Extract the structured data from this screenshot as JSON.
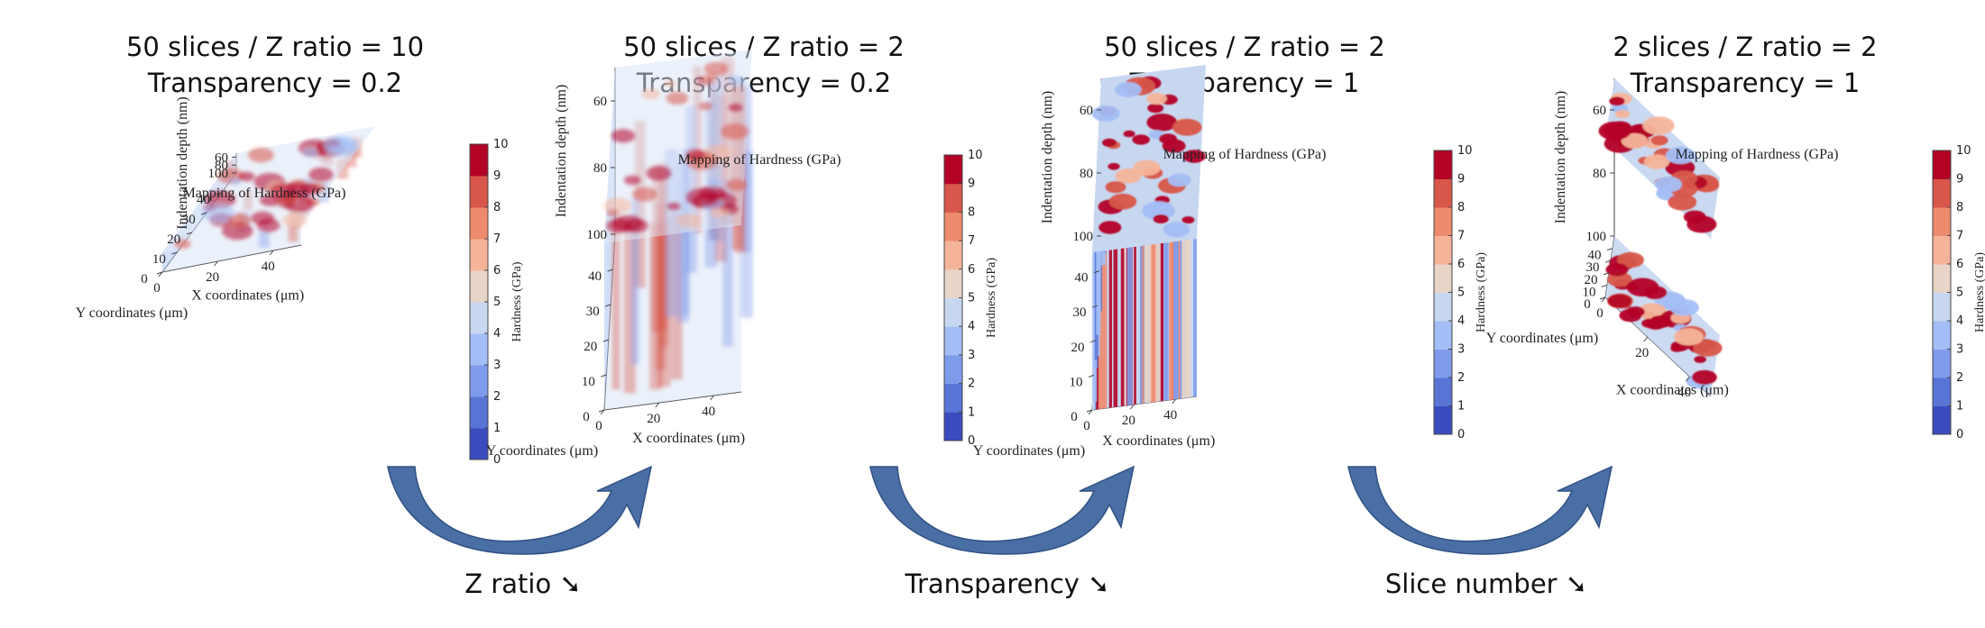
{
  "colormap": [
    "#3b4cc0",
    "#5875d6",
    "#7f9cec",
    "#a3bef6",
    "#c7d7f0",
    "#e9d5c8",
    "#f5b49a",
    "#ee8a6d",
    "#d8574a",
    "#b40426"
  ],
  "arrow_color": "#4a6fa5",
  "chart_data": [
    {
      "type": "heatmap",
      "heading": [
        "50 slices / Z ratio  = 10",
        "Transparency = 0.2"
      ],
      "plot_title": "Mapping of Hardness (GPa)",
      "xlabel": "X coordinates (μm)",
      "ylabel": "Y coordinates (μm)",
      "zlabel": "Indentation depth (nm)",
      "colorbar_label": "Hardness (GPa)",
      "x_ticks": [
        0,
        20,
        40
      ],
      "y_ticks": [
        0,
        10,
        20,
        30,
        40
      ],
      "z_ticks": [
        60,
        80,
        100
      ],
      "clim": [
        0,
        10
      ],
      "colorbar_ticks": [
        0,
        1,
        2,
        3,
        4,
        5,
        6,
        7,
        8,
        9,
        10
      ],
      "slices": 50,
      "z_ratio": 10,
      "transparency": 0.2
    },
    {
      "type": "heatmap",
      "heading": [
        "50 slices / Z ratio  = 2",
        "Transparency = 0.2"
      ],
      "plot_title": "Mapping of Hardness (GPa)",
      "xlabel": "X coordinates (μm)",
      "ylabel": "Y coordinates (μm)",
      "zlabel": "Indentation depth (nm)",
      "colorbar_label": "Hardness (GPa)",
      "x_ticks": [
        0,
        20,
        40
      ],
      "y_ticks": [
        0,
        10,
        20,
        30,
        40
      ],
      "z_ticks": [
        60,
        80,
        100
      ],
      "clim": [
        0,
        10
      ],
      "colorbar_ticks": [
        0,
        1,
        2,
        3,
        4,
        5,
        6,
        7,
        8,
        9,
        10
      ],
      "slices": 50,
      "z_ratio": 2,
      "transparency": 0.2
    },
    {
      "type": "heatmap",
      "heading": [
        "50 slices / Z ratio  = 2",
        "Transparency = 1"
      ],
      "plot_title": "Mapping of Hardness (GPa)",
      "xlabel": "X coordinates (μm)",
      "ylabel": "Y coordinates (μm)",
      "zlabel": "Indentation depth (nm)",
      "colorbar_label": "Hardness (GPa)",
      "x_ticks": [
        0,
        20,
        40
      ],
      "y_ticks": [
        0,
        10,
        20,
        30,
        40
      ],
      "z_ticks": [
        60,
        80,
        100
      ],
      "clim": [
        0,
        10
      ],
      "colorbar_ticks": [
        0,
        1,
        2,
        3,
        4,
        5,
        6,
        7,
        8,
        9,
        10
      ],
      "slices": 50,
      "z_ratio": 2,
      "transparency": 1
    },
    {
      "type": "heatmap",
      "heading": [
        "2 slices / Z ratio  = 2",
        "Transparency = 1"
      ],
      "plot_title": "Mapping of Hardness (GPa)",
      "xlabel": "X coordinates (μm)",
      "ylabel": "Y coordinates (μm)",
      "zlabel": "Indentation depth (nm)",
      "colorbar_label": "Hardness (GPa)",
      "x_ticks": [
        0,
        20,
        40
      ],
      "y_ticks": [
        0,
        10,
        20,
        30,
        40
      ],
      "z_ticks": [
        60,
        80,
        100
      ],
      "clim": [
        0,
        10
      ],
      "colorbar_ticks": [
        0,
        1,
        2,
        3,
        4,
        5,
        6,
        7,
        8,
        9,
        10
      ],
      "slices": 2,
      "z_ratio": 2,
      "transparency": 1
    }
  ],
  "transitions": [
    {
      "label": "Z ratio ➘",
      "icon": "curved-arrow-icon"
    },
    {
      "label": "Transparency ➘",
      "icon": "curved-arrow-icon"
    },
    {
      "label": "Slice number ➘",
      "icon": "curved-arrow-icon"
    }
  ]
}
